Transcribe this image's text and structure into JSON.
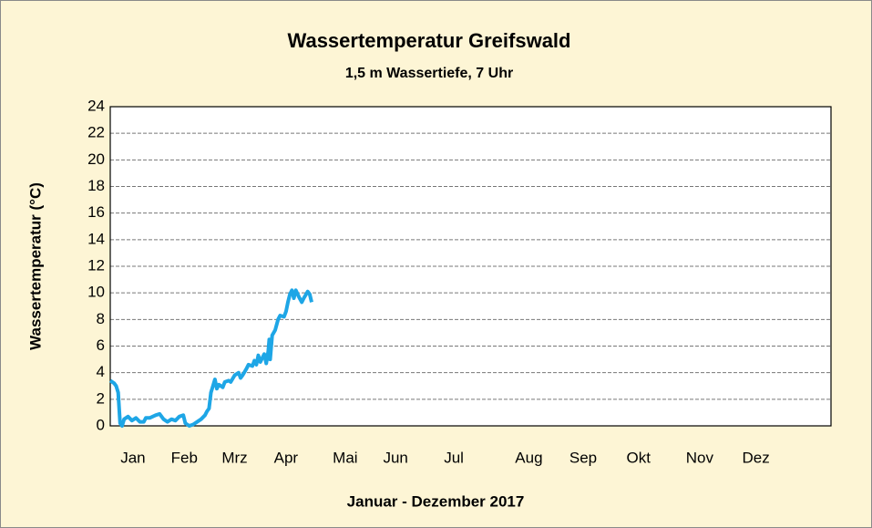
{
  "chart_data": {
    "type": "line",
    "title": "Wassertemperatur Greifswald",
    "subtitle": "1,5 m Wassertiefe, 7 Uhr",
    "ylabel": "Wassertemperatur (°C)",
    "xlabel": "Januar - Dezember 2017",
    "x": [
      0,
      2,
      3,
      4,
      5,
      6,
      7,
      9,
      11,
      13,
      15,
      17,
      18,
      20,
      23,
      25,
      27,
      29,
      31,
      33,
      35,
      37,
      38,
      40,
      42,
      44,
      46,
      48,
      49,
      50,
      51,
      52,
      53,
      54,
      55,
      57,
      58,
      60,
      61,
      63,
      65,
      66,
      67,
      69,
      70,
      72,
      73,
      74,
      75,
      76,
      78,
      79,
      80,
      80.5,
      81,
      82,
      83.5,
      85,
      86,
      88,
      89,
      90,
      91,
      92,
      93,
      94,
      95.5,
      97,
      98,
      100,
      101,
      102
    ],
    "series": [
      {
        "name": "Wassertemperatur",
        "color": "#1ea6e6",
        "values": [
          3.4,
          3.2,
          3.0,
          2.5,
          0.2,
          0,
          0.5,
          0.7,
          0.4,
          0.6,
          0.3,
          0.3,
          0.6,
          0.6,
          0.8,
          0.9,
          0.5,
          0.3,
          0.5,
          0.4,
          0.7,
          0.8,
          0.2,
          0,
          0.1,
          0.3,
          0.5,
          0.8,
          1.1,
          1.3,
          2.5,
          3.0,
          3.5,
          2.8,
          3.1,
          2.9,
          3.3,
          3.4,
          3.3,
          3.8,
          4.0,
          3.6,
          3.8,
          4.3,
          4.6,
          4.5,
          4.9,
          4.6,
          5.3,
          4.8,
          5.4,
          4.7,
          5.6,
          6.5,
          5.0,
          6.8,
          7.2,
          8.0,
          8.3,
          8.2,
          8.6,
          9.3,
          9.9,
          10.2,
          9.6,
          10.2,
          9.7,
          9.3,
          9.6,
          10.1,
          9.9,
          9.3
        ]
      }
    ],
    "xlim": [
      0,
      365
    ],
    "xticks": [
      {
        "value": 11.5,
        "label": "Jan"
      },
      {
        "value": 37.5,
        "label": "Feb"
      },
      {
        "value": 63,
        "label": "Mrz"
      },
      {
        "value": 89,
        "label": "Apr"
      },
      {
        "value": 119,
        "label": "Mai"
      },
      {
        "value": 144.5,
        "label": "Jun"
      },
      {
        "value": 174,
        "label": "Jul"
      },
      {
        "value": 212,
        "label": "Aug"
      },
      {
        "value": 239.5,
        "label": "Sep"
      },
      {
        "value": 267.5,
        "label": "Okt"
      },
      {
        "value": 298.5,
        "label": "Nov"
      },
      {
        "value": 327,
        "label": "Dez"
      }
    ],
    "ylim": [
      0,
      24
    ],
    "yticks": [
      0,
      2,
      4,
      6,
      8,
      10,
      12,
      14,
      16,
      18,
      20,
      22,
      24
    ],
    "grid": true
  }
}
